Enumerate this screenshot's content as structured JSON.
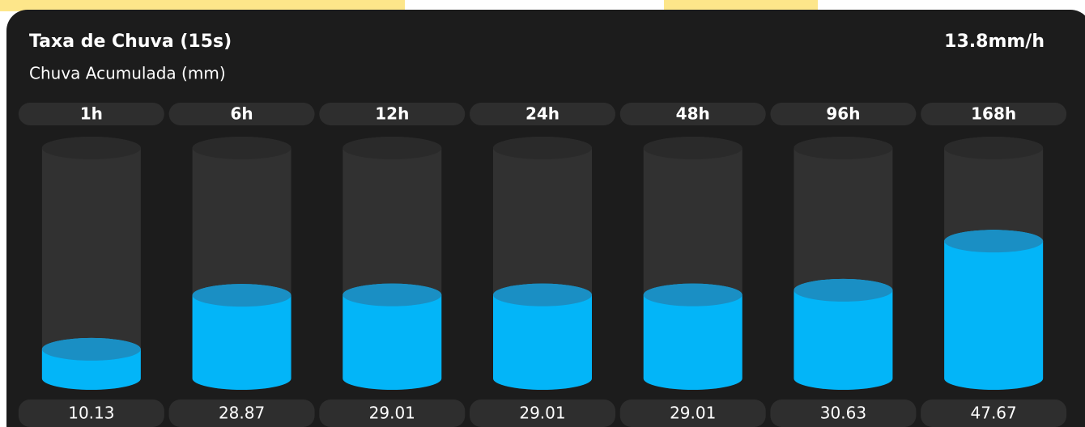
{
  "chart_data": {
    "type": "bar",
    "title": "Taxa de Chuva (15s)",
    "subtitle": "Chuva Acumulada (mm)",
    "annotation": "13.8mm/h",
    "categories": [
      "1h",
      "6h",
      "12h",
      "24h",
      "48h",
      "96h",
      "168h"
    ],
    "values": [
      10.13,
      28.87,
      29.01,
      29.01,
      29.01,
      30.63,
      47.67
    ],
    "color": "#03b5f8",
    "ylim": [
      0,
      80
    ]
  }
}
